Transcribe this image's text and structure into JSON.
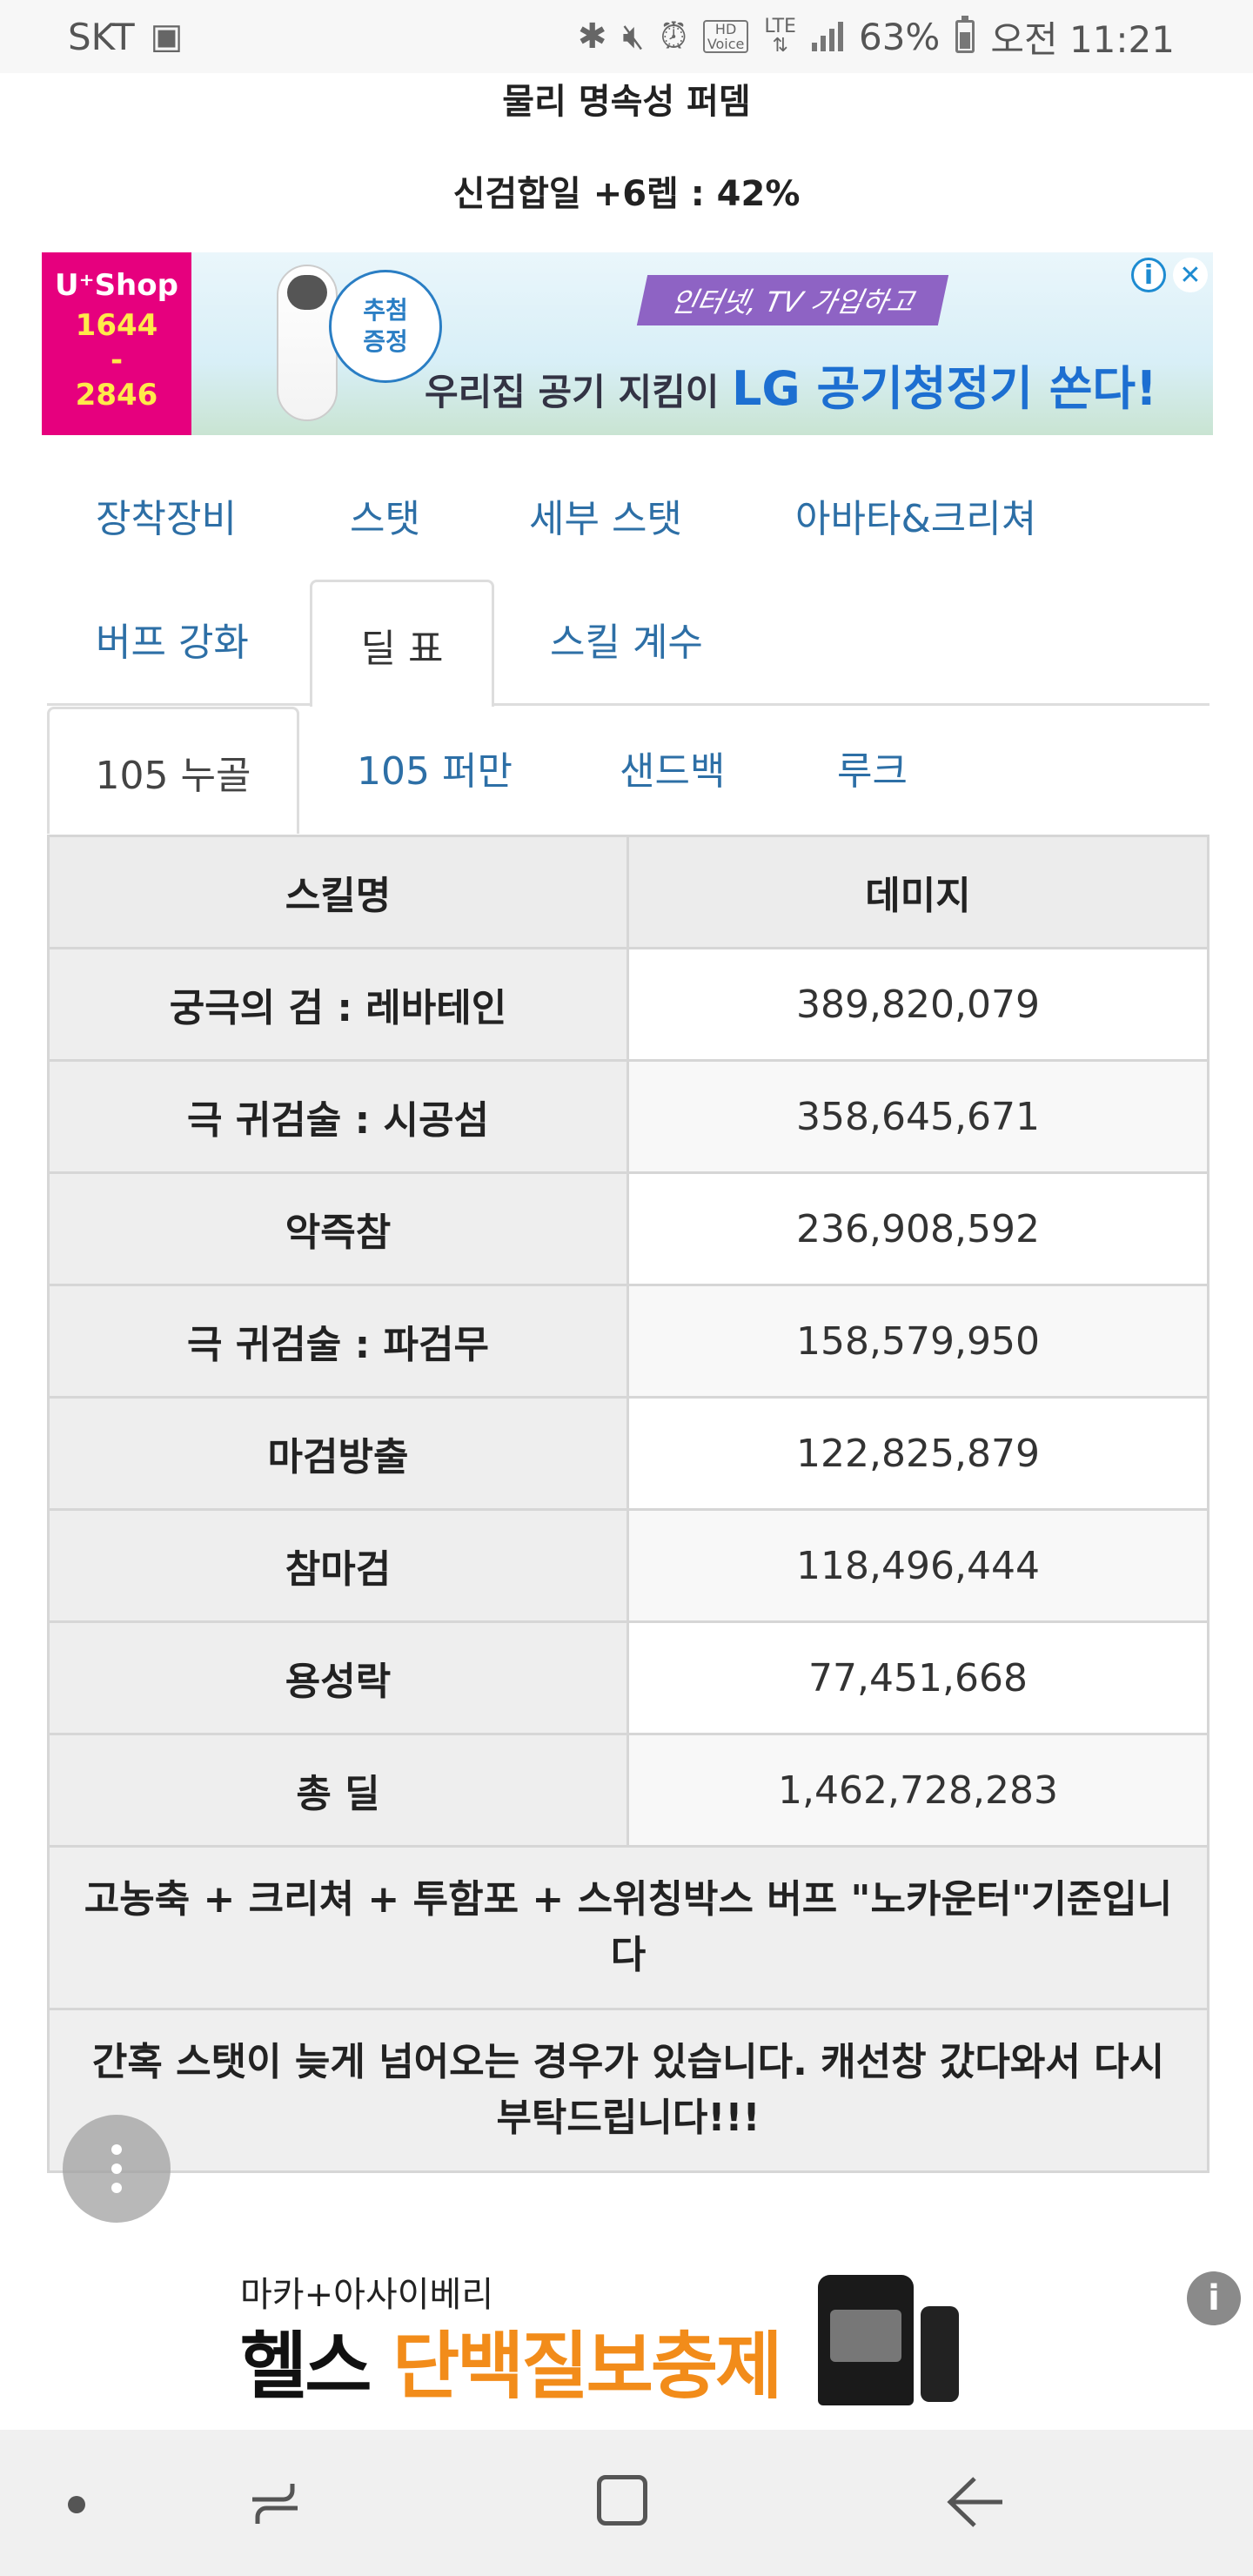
{
  "status_bar": {
    "carrier": "SKT",
    "battery": "63%",
    "time": "오전 11:21",
    "icons": [
      "image-icon",
      "bluetooth-icon",
      "mute-icon",
      "alarm-icon",
      "hd-voice-icon",
      "lte-icon",
      "signal-icon",
      "battery-icon"
    ]
  },
  "header": {
    "line1": "물리 명속성 퍼뎀",
    "line2": "신검합일 +6렙 : 42%"
  },
  "ad_banner": {
    "brand": "U⁺Shop",
    "phone": "1644\n-\n2846",
    "badge": "추첨\n증정",
    "ribbon": "인터넷, TV 가입하고",
    "headline_pre": "우리집 공기 지킴이 ",
    "headline_hl": "LG 공기청정기 쏜다!"
  },
  "category_tabs": [
    {
      "label": "장착장비"
    },
    {
      "label": "스탯"
    },
    {
      "label": "세부 스탯"
    },
    {
      "label": "아바타&크리쳐"
    },
    {
      "label": "버프 강화"
    },
    {
      "label": "딜 표",
      "active": true
    },
    {
      "label": "스킬 계수"
    }
  ],
  "sub_tabs": [
    {
      "label": "105 누골",
      "active": true
    },
    {
      "label": "105 퍼만"
    },
    {
      "label": "샌드백"
    },
    {
      "label": "루크"
    }
  ],
  "table": {
    "headers": [
      "스킬명",
      "데미지"
    ],
    "rows": [
      {
        "name": "궁극의 검 : 레바테인",
        "damage": "389,820,079"
      },
      {
        "name": "극 귀검술 : 시공섬",
        "damage": "358,645,671"
      },
      {
        "name": "악즉참",
        "damage": "236,908,592"
      },
      {
        "name": "극 귀검술 : 파검무",
        "damage": "158,579,950"
      },
      {
        "name": "마검방출",
        "damage": "122,825,879"
      },
      {
        "name": "참마검",
        "damage": "118,496,444"
      },
      {
        "name": "용성락",
        "damage": "77,451,668"
      },
      {
        "name": "총 딜",
        "damage": "1,462,728,283"
      }
    ],
    "notes": [
      "고농축 + 크리쳐 + 투함포 + 스위칭박스 버프 \"노카운터\"기준입니다",
      "간혹 스탯이 늦게 넘어오는 경우가 있습니다. 캐선창 갔다와서 다시 부탁드립니다!!!"
    ]
  },
  "bottom_ad": {
    "subline": "마카+아사이베리",
    "main_pre": "헬스 ",
    "main_hl": "단백질보충제"
  },
  "colors": {
    "link": "#2d6fa6",
    "header_bg": "#ececec",
    "accent_pink": "#e6007e",
    "accent_orange": "#f28c1a"
  }
}
